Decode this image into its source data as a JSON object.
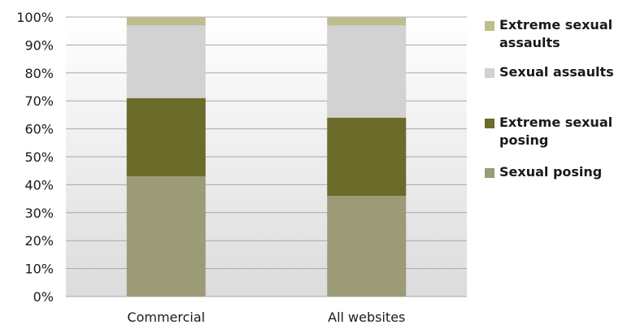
{
  "chart_data": {
    "type": "bar",
    "stacked": true,
    "categories": [
      "Commercial",
      "All websites"
    ],
    "series": [
      {
        "name": "Sexual posing",
        "values": [
          43,
          36
        ],
        "color": "#9b9b78"
      },
      {
        "name": "Extreme sexual posing",
        "values": [
          28,
          28
        ],
        "color": "#6b6b2a"
      },
      {
        "name": "Sexual assaults",
        "values": [
          26,
          33
        ],
        "color": "#d2d2d2"
      },
      {
        "name": "Extreme sexual assaults",
        "values": [
          3,
          3
        ],
        "color": "#bdbd8e"
      }
    ],
    "yticks": [
      "0%",
      "10%",
      "20%",
      "30%",
      "40%",
      "50%",
      "60%",
      "70%",
      "80%",
      "90%",
      "100%"
    ],
    "ylim": [
      0,
      100
    ],
    "grid": true,
    "legend": {
      "position": "right",
      "entries": [
        "Extreme sexual assaults",
        "Sexual assaults",
        "Extreme sexual posing",
        "Sexual posing"
      ]
    }
  }
}
